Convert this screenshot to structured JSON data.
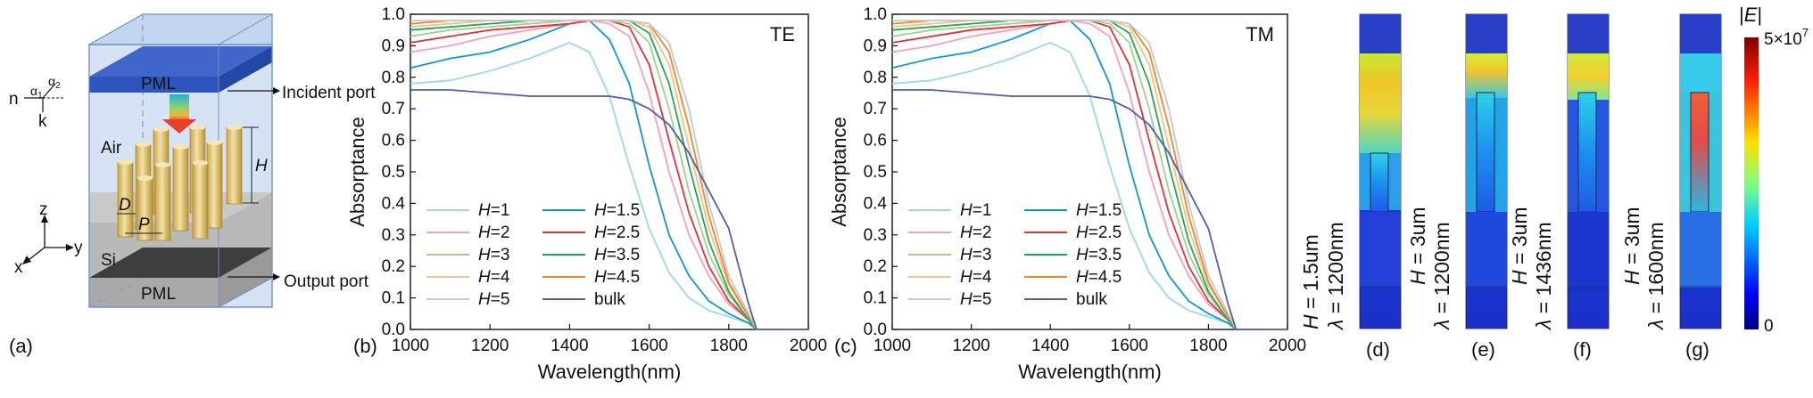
{
  "panel_labels": {
    "a": "(a)",
    "b": "(b)",
    "c": "(c)",
    "d": "(d)",
    "e": "(e)",
    "f": "(f)",
    "g": "(g)"
  },
  "schematic": {
    "pml_top": "PML",
    "pml_bottom": "PML",
    "air": "Air",
    "si": "Si",
    "incident_port": "Incident port",
    "output_port": "Output port",
    "height_label": "H",
    "diameter_label": "D",
    "period_label": "P",
    "axis_z": "z",
    "axis_y": "y",
    "axis_x": "x",
    "angle_n": "n",
    "angle_k": "k",
    "alpha1": "α",
    "alpha1_sub": "1",
    "alpha2": "α",
    "alpha2_sub": "2"
  },
  "chart_data": [
    {
      "type": "line",
      "corner_label": "TE",
      "xlabel": "Wavelength(nm)",
      "ylabel": "Absorptance",
      "xlim": [
        1000,
        2000
      ],
      "ylim": [
        0.0,
        1.0
      ],
      "xticks": [
        1000,
        1200,
        1400,
        1600,
        1800,
        2000
      ],
      "yticks": [
        0.0,
        0.1,
        0.2,
        0.3,
        0.4,
        0.5,
        0.6,
        0.7,
        0.8,
        0.9,
        1.0
      ],
      "legend_position": "bottom-left",
      "x": [
        1000,
        1100,
        1200,
        1300,
        1400,
        1450,
        1500,
        1550,
        1600,
        1650,
        1700,
        1750,
        1800,
        1850,
        1870,
        1900,
        2000
      ],
      "series": [
        {
          "label_var": "H",
          "label_val": "=1",
          "color": "#9ad7ec",
          "values": [
            0.78,
            0.79,
            0.82,
            0.86,
            0.91,
            0.88,
            0.74,
            0.52,
            0.32,
            0.18,
            0.1,
            0.06,
            0.04,
            0.02,
            0.0,
            0.0,
            0.0
          ]
        },
        {
          "label_var": "H",
          "label_val": "=1.5",
          "color": "#1295d6",
          "values": [
            0.83,
            0.86,
            0.88,
            0.92,
            0.97,
            0.98,
            0.92,
            0.78,
            0.52,
            0.3,
            0.17,
            0.09,
            0.05,
            0.02,
            0.0,
            0.0,
            0.0
          ]
        },
        {
          "label_var": "H",
          "label_val": "=2",
          "color": "#f4a1bd",
          "values": [
            0.88,
            0.9,
            0.93,
            0.95,
            0.97,
            0.98,
            0.97,
            0.93,
            0.75,
            0.5,
            0.3,
            0.17,
            0.08,
            0.03,
            0.0,
            0.0,
            0.0
          ]
        },
        {
          "label_var": "H",
          "label_val": "=2.5",
          "color": "#e0323d",
          "values": [
            0.91,
            0.93,
            0.95,
            0.96,
            0.97,
            0.98,
            0.98,
            0.96,
            0.84,
            0.6,
            0.37,
            0.2,
            0.09,
            0.03,
            0.0,
            0.0,
            0.0
          ]
        },
        {
          "label_var": "H",
          "label_val": "=3",
          "color": "#a4d08b",
          "values": [
            0.93,
            0.95,
            0.96,
            0.97,
            0.98,
            0.98,
            0.98,
            0.97,
            0.91,
            0.7,
            0.44,
            0.24,
            0.11,
            0.03,
            0.0,
            0.0,
            0.0
          ]
        },
        {
          "label_var": "H",
          "label_val": "=3.5",
          "color": "#22a55a",
          "values": [
            0.95,
            0.96,
            0.97,
            0.98,
            0.98,
            0.98,
            0.98,
            0.98,
            0.94,
            0.78,
            0.52,
            0.28,
            0.12,
            0.03,
            0.0,
            0.0,
            0.0
          ]
        },
        {
          "label_var": "H",
          "label_val": "=4",
          "color": "#f5c08a",
          "values": [
            0.96,
            0.97,
            0.98,
            0.98,
            0.98,
            0.98,
            0.98,
            0.98,
            0.96,
            0.84,
            0.58,
            0.32,
            0.14,
            0.04,
            0.0,
            0.0,
            0.0
          ]
        },
        {
          "label_var": "H",
          "label_val": "=4.5",
          "color": "#e58a2a",
          "values": [
            0.97,
            0.98,
            0.98,
            0.98,
            0.98,
            0.98,
            0.98,
            0.98,
            0.97,
            0.88,
            0.64,
            0.36,
            0.15,
            0.04,
            0.0,
            0.0,
            0.0
          ]
        },
        {
          "label_var": "H",
          "label_val": "=5",
          "color": "#c7c7cf",
          "values": [
            0.98,
            0.98,
            0.98,
            0.98,
            0.98,
            0.98,
            0.98,
            0.98,
            0.97,
            0.91,
            0.7,
            0.4,
            0.17,
            0.05,
            0.0,
            0.0,
            0.0
          ]
        },
        {
          "label_var": "",
          "label_val": "bulk",
          "color": "#4e5fa8",
          "values": [
            0.76,
            0.76,
            0.75,
            0.74,
            0.74,
            0.74,
            0.74,
            0.73,
            0.7,
            0.65,
            0.56,
            0.44,
            0.32,
            0.08,
            0.0,
            0.0,
            0.0
          ]
        }
      ]
    },
    {
      "type": "line",
      "corner_label": "TM",
      "xlabel": "Wavelength(nm)",
      "ylabel": "Absorptance",
      "xlim": [
        1000,
        2000
      ],
      "ylim": [
        0.0,
        1.0
      ],
      "xticks": [
        1000,
        1200,
        1400,
        1600,
        1800,
        2000
      ],
      "yticks": [
        0.0,
        0.1,
        0.2,
        0.3,
        0.4,
        0.5,
        0.6,
        0.7,
        0.8,
        0.9,
        1.0
      ],
      "legend_position": "bottom-left",
      "x": [
        1000,
        1100,
        1200,
        1300,
        1400,
        1450,
        1500,
        1550,
        1600,
        1650,
        1700,
        1750,
        1800,
        1850,
        1870,
        1900,
        2000
      ],
      "series": [
        {
          "label_var": "H",
          "label_val": "=1",
          "color": "#9ad7ec",
          "values": [
            0.78,
            0.79,
            0.82,
            0.86,
            0.91,
            0.88,
            0.74,
            0.52,
            0.32,
            0.18,
            0.1,
            0.06,
            0.04,
            0.02,
            0.0,
            0.0,
            0.0
          ]
        },
        {
          "label_var": "H",
          "label_val": "=1.5",
          "color": "#1295d6",
          "values": [
            0.83,
            0.86,
            0.88,
            0.92,
            0.97,
            0.98,
            0.92,
            0.78,
            0.52,
            0.3,
            0.17,
            0.09,
            0.05,
            0.02,
            0.0,
            0.0,
            0.0
          ]
        },
        {
          "label_var": "H",
          "label_val": "=2",
          "color": "#f4a1bd",
          "values": [
            0.88,
            0.9,
            0.93,
            0.95,
            0.97,
            0.98,
            0.97,
            0.93,
            0.75,
            0.5,
            0.3,
            0.17,
            0.08,
            0.03,
            0.0,
            0.0,
            0.0
          ]
        },
        {
          "label_var": "H",
          "label_val": "=2.5",
          "color": "#e0323d",
          "values": [
            0.91,
            0.93,
            0.95,
            0.96,
            0.97,
            0.98,
            0.98,
            0.96,
            0.84,
            0.6,
            0.37,
            0.2,
            0.09,
            0.03,
            0.0,
            0.0,
            0.0
          ]
        },
        {
          "label_var": "H",
          "label_val": "=3",
          "color": "#a4d08b",
          "values": [
            0.93,
            0.95,
            0.96,
            0.97,
            0.98,
            0.98,
            0.98,
            0.97,
            0.91,
            0.7,
            0.44,
            0.24,
            0.11,
            0.03,
            0.0,
            0.0,
            0.0
          ]
        },
        {
          "label_var": "H",
          "label_val": "=3.5",
          "color": "#22a55a",
          "values": [
            0.95,
            0.96,
            0.97,
            0.98,
            0.98,
            0.98,
            0.98,
            0.98,
            0.94,
            0.78,
            0.52,
            0.28,
            0.12,
            0.03,
            0.0,
            0.0,
            0.0
          ]
        },
        {
          "label_var": "H",
          "label_val": "=4",
          "color": "#f5c08a",
          "values": [
            0.96,
            0.97,
            0.98,
            0.98,
            0.98,
            0.98,
            0.98,
            0.98,
            0.96,
            0.84,
            0.58,
            0.32,
            0.14,
            0.04,
            0.0,
            0.0,
            0.0
          ]
        },
        {
          "label_var": "H",
          "label_val": "=4.5",
          "color": "#e58a2a",
          "values": [
            0.97,
            0.98,
            0.98,
            0.98,
            0.98,
            0.98,
            0.98,
            0.98,
            0.97,
            0.88,
            0.64,
            0.36,
            0.15,
            0.04,
            0.0,
            0.0,
            0.0
          ]
        },
        {
          "label_var": "H",
          "label_val": "=5",
          "color": "#c7c7cf",
          "values": [
            0.98,
            0.98,
            0.98,
            0.98,
            0.98,
            0.98,
            0.98,
            0.98,
            0.97,
            0.91,
            0.7,
            0.4,
            0.17,
            0.05,
            0.0,
            0.0,
            0.0
          ]
        },
        {
          "label_var": "",
          "label_val": "bulk",
          "color": "#4e5fa8",
          "values": [
            0.76,
            0.76,
            0.75,
            0.74,
            0.74,
            0.74,
            0.74,
            0.73,
            0.7,
            0.65,
            0.56,
            0.44,
            0.32,
            0.08,
            0.0,
            0.0,
            0.0
          ]
        }
      ]
    }
  ],
  "field_maps": [
    {
      "h_var": "H",
      "h_val": " = 1.5um",
      "lambda_var": "λ",
      "lambda_val": " = 1200nm",
      "panel": "(d)"
    },
    {
      "h_var": "H",
      "h_val": " = 3um",
      "lambda_var": "λ",
      "lambda_val": " = 1200nm",
      "panel": "(e)"
    },
    {
      "h_var": "H",
      "h_val": " = 3um",
      "lambda_var": "λ",
      "lambda_val": " = 1436nm",
      "panel": "(f)"
    },
    {
      "h_var": "H",
      "h_val": " = 3um",
      "lambda_var": "λ",
      "lambda_val": " = 1600nm",
      "panel": "(g)"
    }
  ],
  "colorbar": {
    "title_bar": "|",
    "title_var": "E",
    "max_base": "5×10",
    "max_exp": "7",
    "min": "0"
  }
}
